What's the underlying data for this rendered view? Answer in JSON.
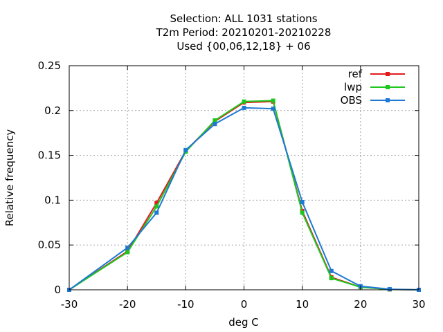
{
  "chart_data": {
    "type": "line",
    "title_lines": [
      "Selection: ALL   1031 stations",
      "T2m  Period: 20210201-20210228",
      "Used {00,06,12,18} + 06"
    ],
    "xlabel": "deg C",
    "ylabel": "Relative frequency",
    "xlim": [
      -30,
      30
    ],
    "ylim": [
      0,
      0.25
    ],
    "x_ticks": [
      -30,
      -20,
      -10,
      0,
      10,
      20,
      30
    ],
    "x_tick_labels": [
      "-30",
      "-20",
      "-10",
      "0",
      "10",
      "20",
      "30"
    ],
    "y_ticks": [
      0,
      0.05,
      0.1,
      0.15,
      0.2,
      0.25
    ],
    "y_tick_labels": [
      "0",
      "0.05",
      "0.1",
      "0.15",
      "0.2",
      "0.25"
    ],
    "grid": true,
    "legend_position": "top-right",
    "x": [
      -30,
      -20,
      -15,
      -10,
      -5,
      0,
      5,
      10,
      15,
      20,
      25,
      30
    ],
    "series": [
      {
        "name": "ref",
        "color": "#e41a1c",
        "values": [
          0.0,
          0.043,
          0.097,
          0.155,
          0.188,
          0.209,
          0.21,
          0.088,
          0.014,
          0.003,
          0.0005,
          0.0
        ]
      },
      {
        "name": "lwp",
        "color": "#1ec71e",
        "values": [
          0.0,
          0.042,
          0.093,
          0.154,
          0.189,
          0.21,
          0.211,
          0.086,
          0.013,
          0.003,
          0.0005,
          0.0
        ]
      },
      {
        "name": "OBS",
        "color": "#1f78d4",
        "values": [
          0.0,
          0.047,
          0.086,
          0.156,
          0.185,
          0.203,
          0.202,
          0.098,
          0.021,
          0.004,
          0.0007,
          0.0
        ]
      }
    ]
  }
}
